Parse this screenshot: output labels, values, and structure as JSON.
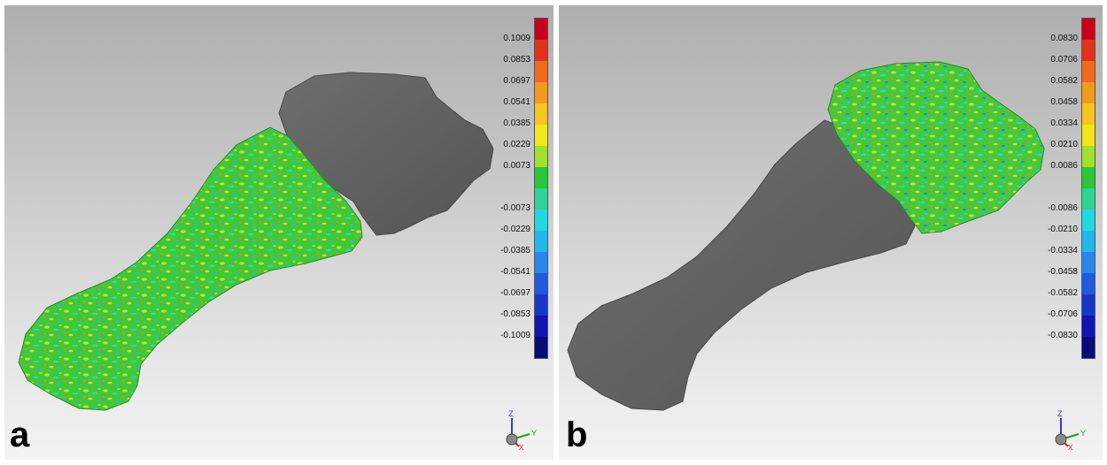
{
  "panels": [
    {
      "id": "a",
      "letter": "a",
      "colorbar": {
        "colors": [
          "#c8001a",
          "#e3321a",
          "#f06a1c",
          "#f39a1e",
          "#f7c51e",
          "#f1e61c",
          "#9ee22a",
          "#28c83a",
          "#2fd39a",
          "#20d8e2",
          "#22b6ee",
          "#2a86ea",
          "#1f5ae0",
          "#1a36c8",
          "#1016b0",
          "#0a0a7a"
        ],
        "ticks": [
          "0.1009",
          "0.0853",
          "0.0697",
          "0.0541",
          "0.0385",
          "0.0229",
          "0.0073",
          "-0.0073",
          "-0.0229",
          "-0.0385",
          "-0.0541",
          "-0.0697",
          "-0.0853",
          "-0.1009"
        ]
      },
      "axes": {
        "z": "Z",
        "y": "Y",
        "x": "X"
      }
    },
    {
      "id": "b",
      "letter": "b",
      "colorbar": {
        "colors": [
          "#c8001a",
          "#e3321a",
          "#f06a1c",
          "#f39a1e",
          "#f7c51e",
          "#f1e61c",
          "#9ee22a",
          "#28c83a",
          "#2fd39a",
          "#20d8e2",
          "#22b6ee",
          "#2a86ea",
          "#1f5ae0",
          "#1a36c8",
          "#1016b0",
          "#0a0a7a"
        ],
        "ticks": [
          "0.0830",
          "0.0706",
          "0.0582",
          "0.0458",
          "0.0334",
          "0.0210",
          "0.0086",
          "-0.0086",
          "-0.0210",
          "-0.0334",
          "-0.0458",
          "-0.0582",
          "-0.0706",
          "-0.0830"
        ]
      },
      "axes": {
        "z": "Z",
        "y": "Y",
        "x": "X"
      }
    }
  ]
}
